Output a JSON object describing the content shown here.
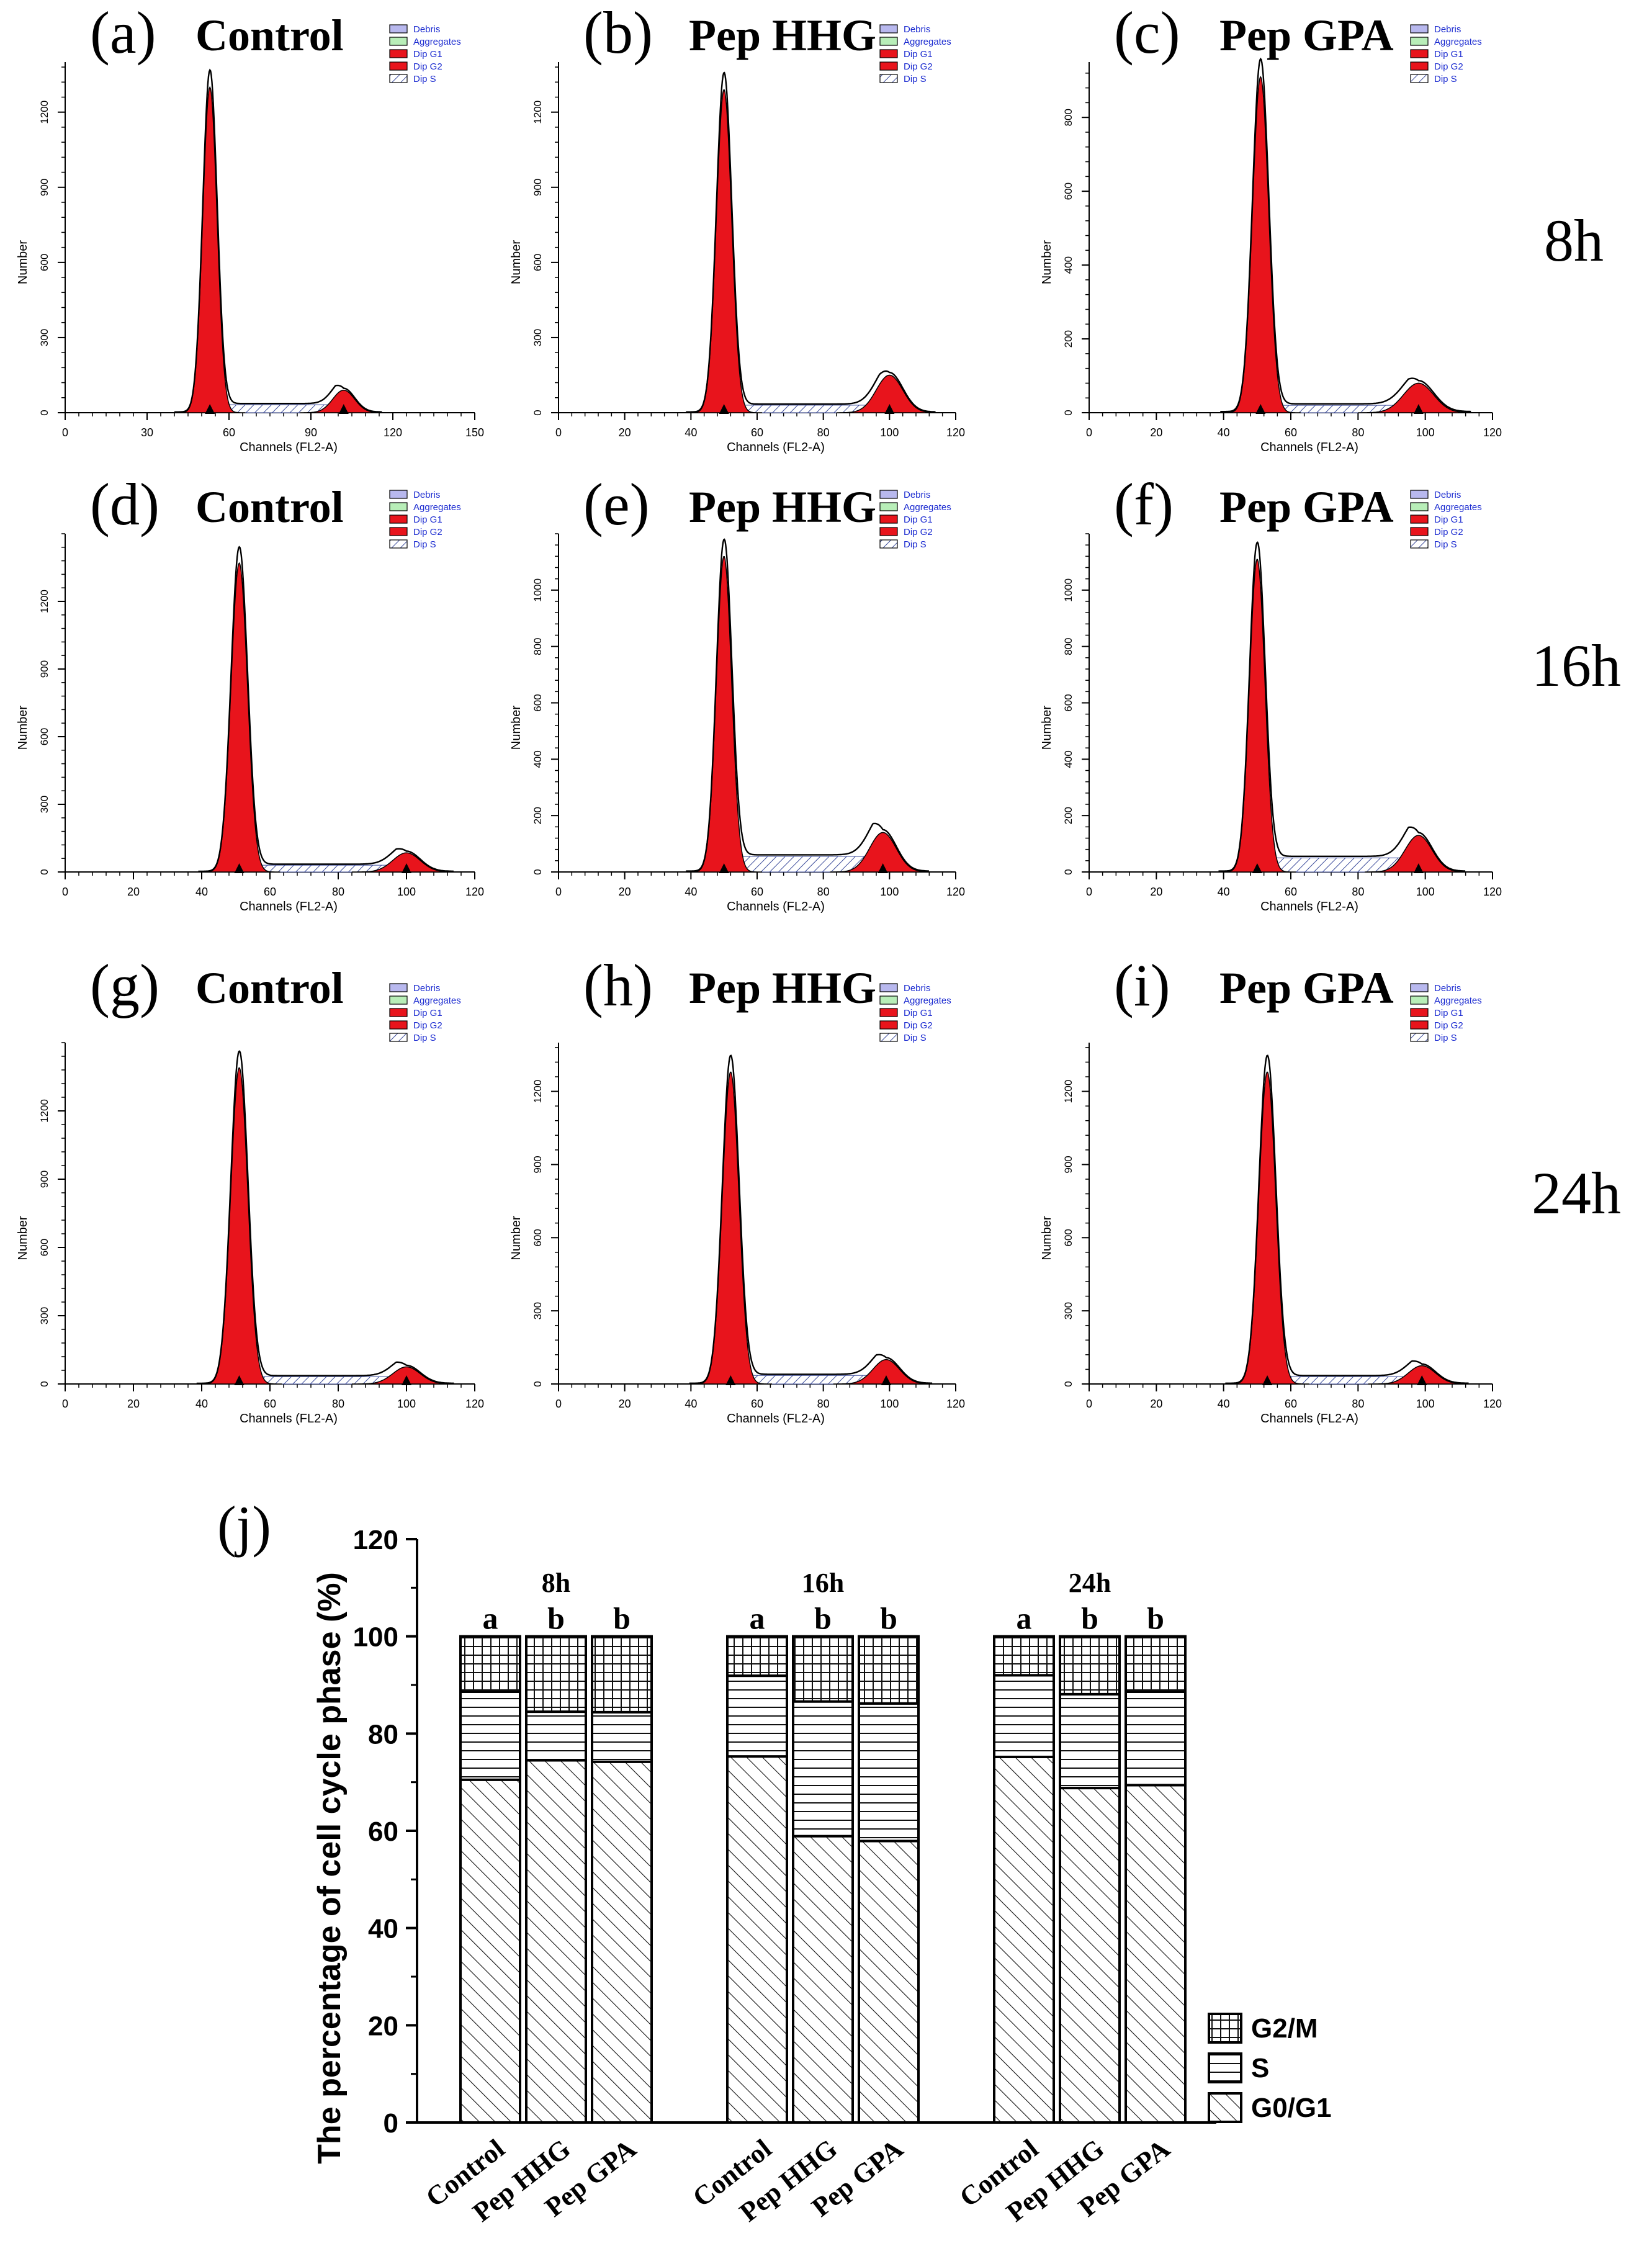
{
  "figure": {
    "timepoints": [
      "8h",
      "16h",
      "24h"
    ],
    "legend_items": [
      "Debris",
      "Aggregates",
      "Dip G1",
      "Dip G2",
      "Dip S"
    ],
    "colors": {
      "g1": "#e8141c",
      "g2": "#e8141c",
      "s_hatch": "#3a4a9a",
      "debris": "#b8b8ee",
      "aggregates": "#b8eeb8",
      "legend_text": "#1a2ad0",
      "envelope": "#000000"
    },
    "panels": [
      {
        "label": "(a)",
        "title": "Control",
        "xlabel": "Channels (FL2-A)",
        "ylabel": "Number",
        "xmax": 150,
        "xticks": [
          "0",
          "30",
          "60",
          "90",
          "120",
          "150"
        ],
        "ymax": 1400,
        "yticks": [
          "0",
          "300",
          "600",
          "900",
          "1200"
        ],
        "g1_mean": 53,
        "g1_peak": 1300,
        "g1_sd": 2.6,
        "g2_mean": 102,
        "g2_peak": 90,
        "g2_sd": 4,
        "s_level": 32
      },
      {
        "label": "(b)",
        "title": "Pep HHG",
        "xlabel": "Channels (FL2-A)",
        "ylabel": "Number",
        "xmax": 120,
        "xticks": [
          "0",
          "20",
          "40",
          "60",
          "80",
          "100",
          "120"
        ],
        "ymax": 1400,
        "yticks": [
          "0",
          "300",
          "600",
          "900",
          "1200"
        ],
        "g1_mean": 50,
        "g1_peak": 1290,
        "g1_sd": 2.3,
        "g2_mean": 100,
        "g2_peak": 150,
        "g2_sd": 4,
        "s_level": 30
      },
      {
        "label": "(c)",
        "title": "Pep GPA",
        "xlabel": "Channels (FL2-A)",
        "ylabel": "Number",
        "xmax": 120,
        "xticks": [
          "0",
          "20",
          "40",
          "60",
          "80",
          "100",
          "120"
        ],
        "ymax": 950,
        "yticks": [
          "0",
          "200",
          "400",
          "600",
          "800"
        ],
        "g1_mean": 51,
        "g1_peak": 910,
        "g1_sd": 2.4,
        "g2_mean": 98,
        "g2_peak": 80,
        "g2_sd": 4.5,
        "s_level": 20
      },
      {
        "label": "(d)",
        "title": "Control",
        "xlabel": "Channels (FL2-A)",
        "ylabel": "Number",
        "xmax": 120,
        "xticks": [
          "0",
          "20",
          "40",
          "60",
          "80",
          "100",
          "120"
        ],
        "ymax": 1500,
        "yticks": [
          "0",
          "300",
          "600",
          "900",
          "1200"
        ],
        "g1_mean": 51,
        "g1_peak": 1370,
        "g1_sd": 2.4,
        "g2_mean": 100,
        "g2_peak": 85,
        "g2_sd": 4,
        "s_level": 30
      },
      {
        "label": "(e)",
        "title": "Pep HHG",
        "xlabel": "Channels (FL2-A)",
        "ylabel": "Number",
        "xmax": 120,
        "xticks": [
          "0",
          "20",
          "40",
          "60",
          "80",
          "100",
          "120"
        ],
        "ymax": 1200,
        "yticks": [
          "0",
          "200",
          "400",
          "600",
          "800",
          "1000"
        ],
        "g1_mean": 50,
        "g1_peak": 1120,
        "g1_sd": 2.3,
        "g2_mean": 98,
        "g2_peak": 140,
        "g2_sd": 4,
        "s_level": 55
      },
      {
        "label": "(f)",
        "title": "Pep GPA",
        "xlabel": "Channels (FL2-A)",
        "ylabel": "Number",
        "xmax": 120,
        "xticks": [
          "0",
          "20",
          "40",
          "60",
          "80",
          "100",
          "120"
        ],
        "ymax": 1200,
        "yticks": [
          "0",
          "200",
          "400",
          "600",
          "800",
          "1000"
        ],
        "g1_mean": 50,
        "g1_peak": 1110,
        "g1_sd": 2.3,
        "g2_mean": 98,
        "g2_peak": 130,
        "g2_sd": 4,
        "s_level": 50
      },
      {
        "label": "(g)",
        "title": "Control",
        "xlabel": "Channels (FL2-A)",
        "ylabel": "Number",
        "xmax": 120,
        "xticks": [
          "0",
          "20",
          "40",
          "60",
          "80",
          "100",
          "120"
        ],
        "ymax": 1500,
        "yticks": [
          "0",
          "300",
          "600",
          "900",
          "1200"
        ],
        "g1_mean": 51,
        "g1_peak": 1390,
        "g1_sd": 2.5,
        "g2_mean": 100,
        "g2_peak": 75,
        "g2_sd": 4,
        "s_level": 32
      },
      {
        "label": "(h)",
        "title": "Pep HHG",
        "xlabel": "Channels (FL2-A)",
        "ylabel": "Number",
        "xmax": 120,
        "xticks": [
          "0",
          "20",
          "40",
          "60",
          "80",
          "100",
          "120"
        ],
        "ymax": 1400,
        "yticks": [
          "0",
          "300",
          "600",
          "900",
          "1200"
        ],
        "g1_mean": 52,
        "g1_peak": 1280,
        "g1_sd": 2.5,
        "g2_mean": 99,
        "g2_peak": 100,
        "g2_sd": 4,
        "s_level": 35
      },
      {
        "label": "(i)",
        "title": "Pep GPA",
        "xlabel": "Channels (FL2-A)",
        "ylabel": "Number",
        "xmax": 120,
        "xticks": [
          "0",
          "20",
          "40",
          "60",
          "80",
          "100",
          "120"
        ],
        "ymax": 1400,
        "yticks": [
          "0",
          "300",
          "600",
          "900",
          "1200"
        ],
        "g1_mean": 53,
        "g1_peak": 1280,
        "g1_sd": 2.5,
        "g2_mean": 99,
        "g2_peak": 75,
        "g2_sd": 4,
        "s_level": 30
      }
    ]
  },
  "chart_data": {
    "type": "bar",
    "stacked": true,
    "panel_label": "(j)",
    "ylabel": "The percentage of cell cycle phase (%)",
    "ylim": [
      0,
      120
    ],
    "yticks": [
      "0",
      "20",
      "40",
      "60",
      "80",
      "100",
      "120"
    ],
    "groups": [
      "8h",
      "16h",
      "24h"
    ],
    "categories": [
      "Control",
      "Pep HHG",
      "Pep GPA"
    ],
    "letters": [
      [
        "a",
        "b",
        "b"
      ],
      [
        "a",
        "b",
        "b"
      ],
      [
        "a",
        "b",
        "b"
      ]
    ],
    "series": [
      {
        "name": "G0/G1",
        "pattern": "diagonal",
        "values": [
          [
            70.5,
            74.5,
            74.2
          ],
          [
            75.3,
            58.9,
            57.9
          ],
          [
            75.2,
            68.8,
            69.4
          ]
        ]
      },
      {
        "name": "S",
        "pattern": "horizontal",
        "values": [
          [
            18.1,
            10.0,
            10.2
          ],
          [
            16.6,
            27.7,
            28.3
          ],
          [
            16.8,
            19.3,
            19.2
          ]
        ]
      },
      {
        "name": "G2/M",
        "pattern": "grid",
        "values": [
          [
            11.4,
            15.5,
            15.6
          ],
          [
            8.1,
            13.4,
            13.8
          ],
          [
            8.0,
            11.9,
            11.4
          ]
        ]
      }
    ],
    "legend_order": [
      "G2/M",
      "S",
      "G0/G1"
    ]
  }
}
